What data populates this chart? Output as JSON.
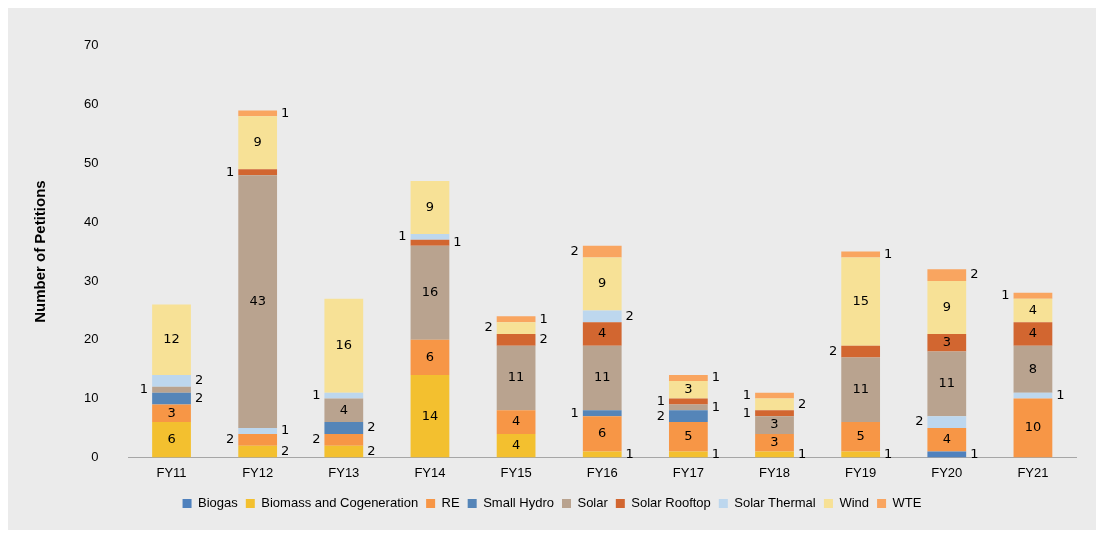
{
  "chart_data": {
    "type": "bar",
    "stacked": true,
    "ylabel": "Number of Petitions",
    "categories": [
      "FY11",
      "FY12",
      "FY13",
      "FY14",
      "FY15",
      "FY16",
      "FY17",
      "FY18",
      "FY19",
      "FY20",
      "FY21"
    ],
    "ylim": [
      0,
      70
    ],
    "yticks": [
      0,
      10,
      20,
      30,
      40,
      50,
      60,
      70
    ],
    "grid": false,
    "legend": "bottom",
    "data_labels": true,
    "series": [
      {
        "name": "Biogas",
        "color": "#4f81bd",
        "values": [
          null,
          null,
          null,
          null,
          null,
          null,
          null,
          null,
          null,
          1,
          null
        ]
      },
      {
        "name": "Biomass and Cogeneration",
        "color": "#f3c02f",
        "values": [
          6,
          2,
          2,
          14,
          4,
          1,
          1,
          1,
          1,
          null,
          null
        ]
      },
      {
        "name": "RE",
        "color": "#f79646",
        "values": [
          3,
          2,
          2,
          6,
          4,
          6,
          5,
          3,
          5,
          4,
          10
        ]
      },
      {
        "name": "Small Hydro",
        "color": "#5585b8",
        "values": [
          2,
          null,
          2,
          null,
          null,
          1,
          2,
          null,
          null,
          null,
          null
        ]
      },
      {
        "color": "#bdd7ee",
        "values": [
          null,
          1,
          null,
          null,
          null,
          null,
          null,
          null,
          null,
          2,
          1
        ]
      },
      {
        "name": "Solar",
        "color": "#b9a38f",
        "values": [
          1,
          43,
          4,
          16,
          11,
          11,
          1,
          3,
          11,
          11,
          8
        ]
      },
      {
        "name": "Solar Rooftop",
        "color": "#d26630",
        "values": [
          null,
          1,
          null,
          1,
          2,
          4,
          1,
          1,
          2,
          3,
          4
        ]
      },
      {
        "name": "Solar Thermal",
        "color": "#bdd7ee",
        "values": [
          2,
          null,
          1,
          1,
          null,
          2,
          null,
          null,
          null,
          null,
          null
        ]
      },
      {
        "name": "Wind",
        "color": "#f7e196",
        "values": [
          12,
          9,
          16,
          9,
          2,
          9,
          3,
          2,
          15,
          9,
          4
        ]
      },
      {
        "name": "WTE",
        "color": "#f9a560",
        "values": [
          null,
          1,
          null,
          null,
          1,
          2,
          1,
          1,
          1,
          2,
          1
        ]
      }
    ]
  }
}
